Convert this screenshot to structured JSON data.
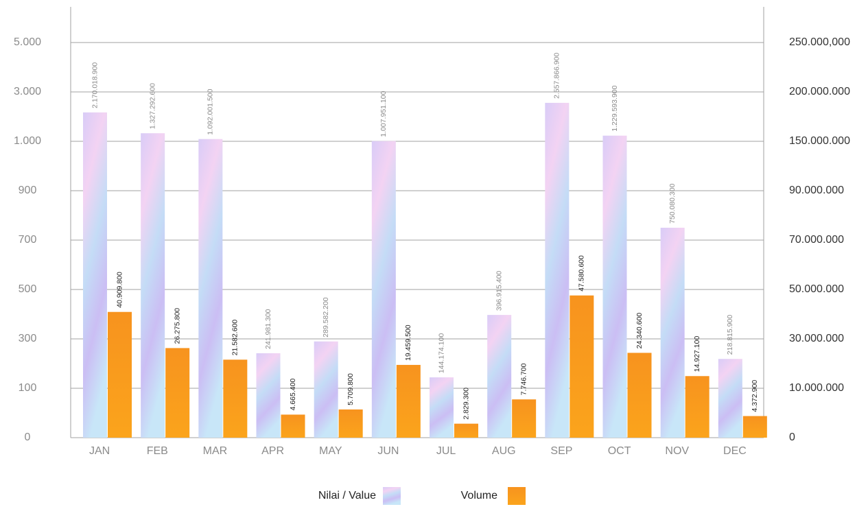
{
  "chart_data": {
    "type": "bar",
    "categories": [
      "JAN",
      "FEB",
      "MAR",
      "APR",
      "MAY",
      "JUN",
      "JUL",
      "AUG",
      "SEP",
      "OCT",
      "NOV",
      "DEC"
    ],
    "series": [
      {
        "name": "Nilai / Value",
        "color": "#cdb8f5",
        "values": [
          2170.0189,
          1327.2926,
          1092.0015,
          241.9813,
          289.5822,
          1007.9511,
          144.1741,
          396.9154,
          2557.8669,
          1229.5939,
          750.0803,
          218.8159
        ],
        "value_labels": [
          "2.170.018.900",
          "1.327.292.600",
          "1.092.001.500",
          "241.981.300",
          "289.582.200",
          "1.007.951.100",
          "144.174.100",
          "396.915.400",
          "2.557.866.900",
          "1.229.593.900",
          "750.080.300",
          "218.815.900"
        ]
      },
      {
        "name": "Volume",
        "color": "#f7931e",
        "axis": "y2",
        "values": [
          40909800,
          26275800,
          21582600,
          4665400,
          5709800,
          19459500,
          2829300,
          7746700,
          47580600,
          24340600,
          14927100,
          4372900
        ],
        "value_labels": [
          "40.909.800",
          "26.275.800",
          "21.582.600",
          "4.665.400",
          "5.709.800",
          "19.459.500",
          "2.829.300",
          "7.746.700",
          "47.580.600",
          "24.340.600",
          "14.927.100",
          "4.372.900"
        ]
      }
    ],
    "yscale": "piecewise",
    "ylim": [
      0,
      5000
    ],
    "yticks": [
      0,
      100,
      300,
      500,
      700,
      900,
      {
        "value": 1000,
        "label": "1.000"
      },
      {
        "value": 3000,
        "label": "3.000"
      },
      {
        "value": 5000,
        "label": "5.000"
      }
    ],
    "y2lim": [
      0,
      250000000
    ],
    "y2ticks": [
      0,
      {
        "value": 10000000,
        "label": "10.000.000"
      },
      {
        "value": 30000000,
        "label": "30.000.000"
      },
      {
        "value": 50000000,
        "label": "50.000.000"
      },
      {
        "value": 70000000,
        "label": "70.000.000"
      },
      {
        "value": 90000000,
        "label": "90.000.000"
      },
      {
        "value": 150000000,
        "label": "150.000.000"
      },
      {
        "value": 200000000,
        "label": "200.000.000"
      },
      {
        "value": 250000000,
        "label": "250.000,000"
      }
    ],
    "grid": true
  }
}
